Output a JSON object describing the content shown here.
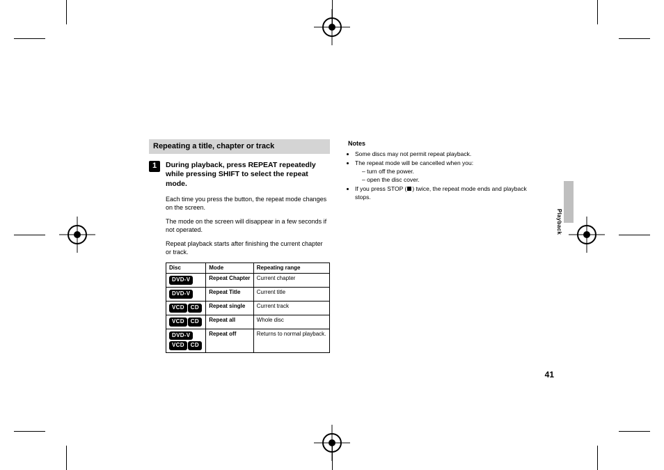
{
  "section_title": "Repeating a title, chapter or track",
  "step_number": "1",
  "step_text": "During playback, press REPEAT repeatedly while pressing SHIFT to select the repeat mode.",
  "para1": "Each time you press the button, the repeat mode changes on the screen.",
  "para2": "The mode on the screen will disappear in a few seconds if not operated.",
  "para3": "Repeat playback starts after finishing the current chapter or track.",
  "table": {
    "headers": [
      "Disc",
      "Mode",
      "Repeating range"
    ],
    "rows": [
      {
        "badges": [
          "DVD-V"
        ],
        "mode": "Repeat Chapter",
        "range": "Current chapter"
      },
      {
        "badges": [
          "DVD-V"
        ],
        "mode": "Repeat Title",
        "range": "Current title"
      },
      {
        "badges": [
          "VCD",
          "CD"
        ],
        "mode": "Repeat single",
        "range": "Current track"
      },
      {
        "badges": [
          "VCD",
          "CD"
        ],
        "mode": "Repeat all",
        "range": "Whole disc"
      },
      {
        "badges": [
          "DVD-V",
          "VCD",
          "CD"
        ],
        "mode": "Repeat off",
        "range": "Returns to normal playback."
      }
    ]
  },
  "notes_heading": "Notes",
  "notes": {
    "n1": "Some discs may not permit repeat playback.",
    "n2": "The repeat mode will be cancelled when you:",
    "n2a": "– turn off the power.",
    "n2b": "– open the disc cover.",
    "n3a": "If you press STOP (",
    "n3b": ") twice, the repeat mode ends and playback stops."
  },
  "side_label": "Playback",
  "page_number": "41",
  "colors": {
    "section_bg": "#d4d4d4",
    "tab_bg": "#bfbfbf",
    "text": "#000000",
    "badge_bg": "#000000",
    "badge_fg": "#ffffff"
  }
}
